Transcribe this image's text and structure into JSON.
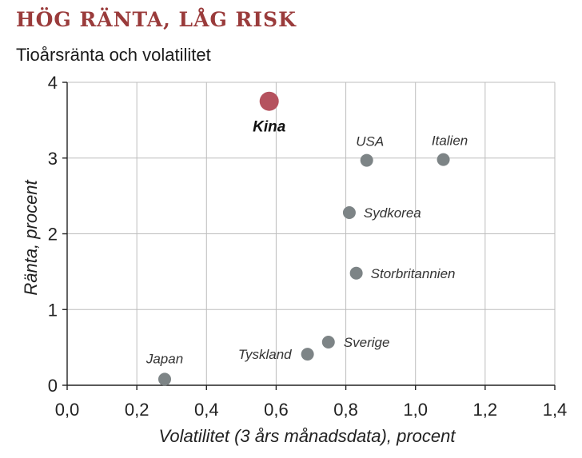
{
  "title": "HÖG RÄNTA, LÅG RISK",
  "subtitle": "Tioårsränta och volatilitet",
  "chart_data": {
    "type": "scatter",
    "xlabel": "Volatilitet (3 års månadsdata), procent",
    "ylabel": "Ränta, procent",
    "xlim": [
      0,
      1.4
    ],
    "ylim": [
      0,
      4
    ],
    "x_ticks": [
      "0,0",
      "0,2",
      "0,4",
      "0,6",
      "0,8",
      "1,0",
      "1,2",
      "1,4"
    ],
    "y_ticks": [
      "0",
      "1",
      "2",
      "3",
      "4"
    ],
    "grid": true,
    "points": [
      {
        "label": "Kina",
        "x": 0.58,
        "y": 3.75,
        "highlight": true
      },
      {
        "label": "USA",
        "x": 0.86,
        "y": 2.97
      },
      {
        "label": "Italien",
        "x": 1.08,
        "y": 2.98
      },
      {
        "label": "Sydkorea",
        "x": 0.81,
        "y": 2.28
      },
      {
        "label": "Storbritannien",
        "x": 0.83,
        "y": 1.48
      },
      {
        "label": "Sverige",
        "x": 0.75,
        "y": 0.57
      },
      {
        "label": "Tyskland",
        "x": 0.69,
        "y": 0.41
      },
      {
        "label": "Japan",
        "x": 0.28,
        "y": 0.08
      }
    ],
    "colors": {
      "highlight": "#b5525e",
      "default": "#7d8486",
      "title": "#9a3b3b"
    }
  }
}
